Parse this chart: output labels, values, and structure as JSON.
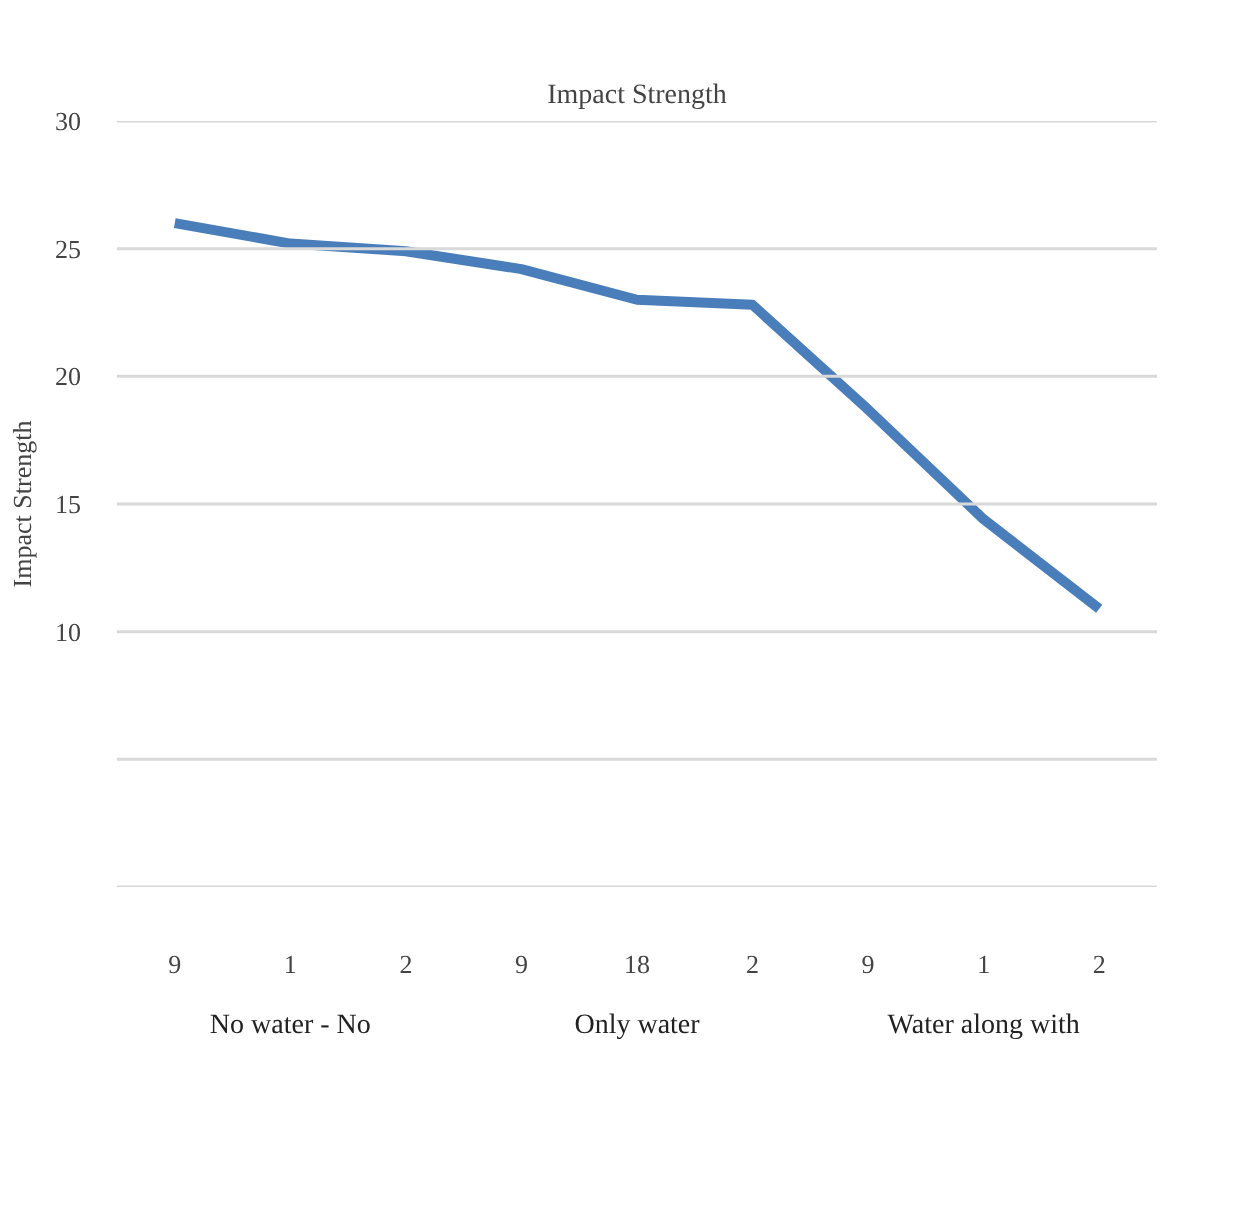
{
  "chart_data": {
    "type": "line",
    "title": "Impact Strength",
    "ylabel": "Impact Strength",
    "categories": [
      "9",
      "1",
      "2",
      "9",
      "18",
      "2",
      "9",
      "1",
      "2"
    ],
    "series": [
      {
        "color": "#4a7ebb",
        "values": [
          26.0,
          25.2,
          24.9,
          24.2,
          23.0,
          22.8,
          18.7,
          14.4,
          10.9
        ]
      }
    ],
    "ylim": [
      0,
      30
    ],
    "yticks": [
      {
        "value": 0,
        "label": null
      },
      {
        "value": 5,
        "label": null
      },
      10,
      15,
      20,
      25,
      30
    ],
    "annotations": [
      "No water - No",
      "Only water",
      "Water along with"
    ],
    "grid": "y",
    "marker": "none",
    "line_style": "solid"
  }
}
